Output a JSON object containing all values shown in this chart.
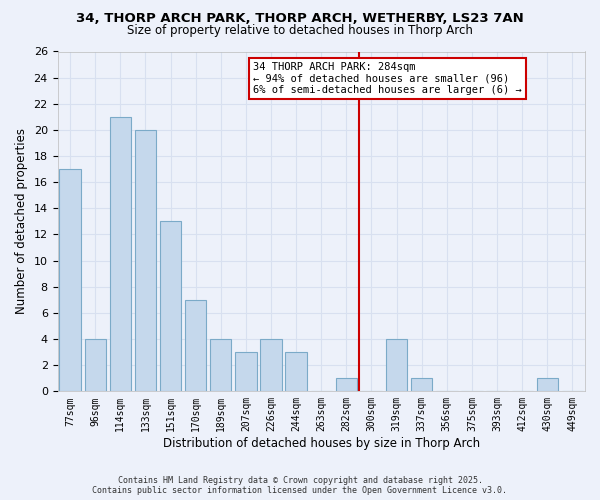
{
  "title_line1": "34, THORP ARCH PARK, THORP ARCH, WETHERBY, LS23 7AN",
  "title_line2": "Size of property relative to detached houses in Thorp Arch",
  "xlabel": "Distribution of detached houses by size in Thorp Arch",
  "ylabel": "Number of detached properties",
  "bar_color": "#c5d8ec",
  "bar_edge_color": "#7baac8",
  "background_color": "#edf1fa",
  "grid_color": "#d8e0f0",
  "categories": [
    "77sqm",
    "96sqm",
    "114sqm",
    "133sqm",
    "151sqm",
    "170sqm",
    "189sqm",
    "207sqm",
    "226sqm",
    "244sqm",
    "263sqm",
    "282sqm",
    "300sqm",
    "319sqm",
    "337sqm",
    "356sqm",
    "375sqm",
    "393sqm",
    "412sqm",
    "430sqm",
    "449sqm"
  ],
  "values": [
    17,
    4,
    21,
    20,
    13,
    7,
    4,
    3,
    4,
    3,
    0,
    1,
    0,
    4,
    1,
    0,
    0,
    0,
    0,
    1,
    0
  ],
  "vline_index": 11.5,
  "vline_color": "#cc0000",
  "annotation_title": "34 THORP ARCH PARK: 284sqm",
  "annotation_line1": "← 94% of detached houses are smaller (96)",
  "annotation_line2": "6% of semi-detached houses are larger (6) →",
  "ylim": [
    0,
    26
  ],
  "yticks": [
    0,
    2,
    4,
    6,
    8,
    10,
    12,
    14,
    16,
    18,
    20,
    22,
    24,
    26
  ],
  "footer_line1": "Contains HM Land Registry data © Crown copyright and database right 2025.",
  "footer_line2": "Contains public sector information licensed under the Open Government Licence v3.0."
}
